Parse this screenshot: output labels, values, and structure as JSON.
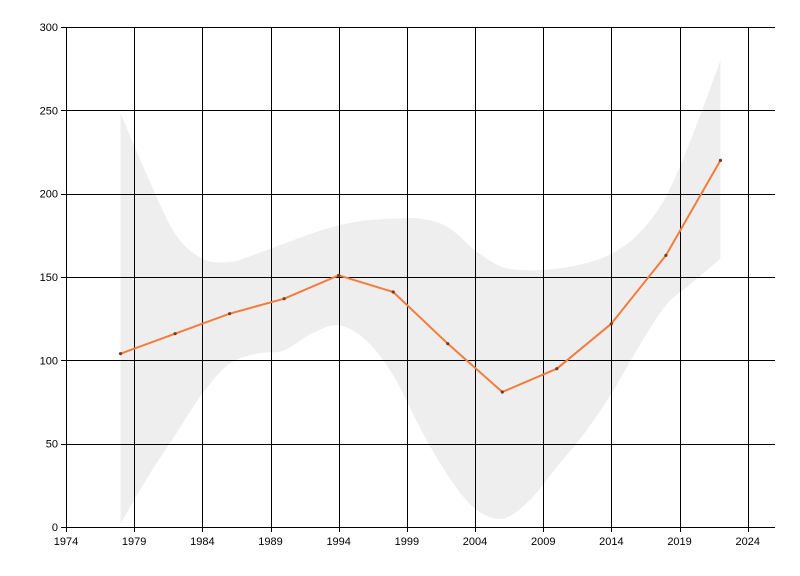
{
  "chart_data": {
    "type": "line",
    "title": "",
    "xlabel": "",
    "ylabel": "",
    "xlim": [
      1974,
      2026
    ],
    "ylim": [
      0,
      300
    ],
    "x_ticks": [
      1974,
      1979,
      1984,
      1989,
      1994,
      1999,
      2004,
      2009,
      2014,
      2019,
      2024
    ],
    "y_ticks": [
      0,
      50,
      100,
      150,
      200,
      250,
      300
    ],
    "grid": true,
    "legend": "none",
    "colors": {
      "line": "#f47c3c",
      "band": "#eeeeee",
      "point": "#7a3a18",
      "grid": "#000000"
    },
    "x": [
      1978,
      1982,
      1986,
      1990,
      1994,
      1998,
      2002,
      2006,
      2010,
      2014,
      2018,
      2022
    ],
    "series": [
      {
        "values": [
          104,
          116,
          128,
          137,
          151,
          141,
          110,
          81,
          95,
          122,
          163,
          220
        ]
      }
    ],
    "band": {
      "x": [
        1978,
        1980,
        1982,
        1984,
        1986,
        1988,
        1990,
        1992,
        1994,
        1996,
        1998,
        2000,
        2002,
        2004,
        2006,
        2008,
        2010,
        2012,
        2014,
        2016,
        2018,
        2020,
        2022
      ],
      "upper": [
        248,
        210,
        176,
        161,
        159,
        164,
        170,
        176,
        181,
        184,
        185,
        185,
        180,
        166,
        156,
        154,
        155,
        158,
        164,
        176,
        198,
        236,
        280
      ],
      "lower": [
        2,
        30,
        55,
        80,
        98,
        104,
        106,
        116,
        121,
        112,
        91,
        59,
        31,
        11,
        5,
        16,
        36,
        56,
        80,
        108,
        133,
        147,
        161
      ]
    }
  }
}
